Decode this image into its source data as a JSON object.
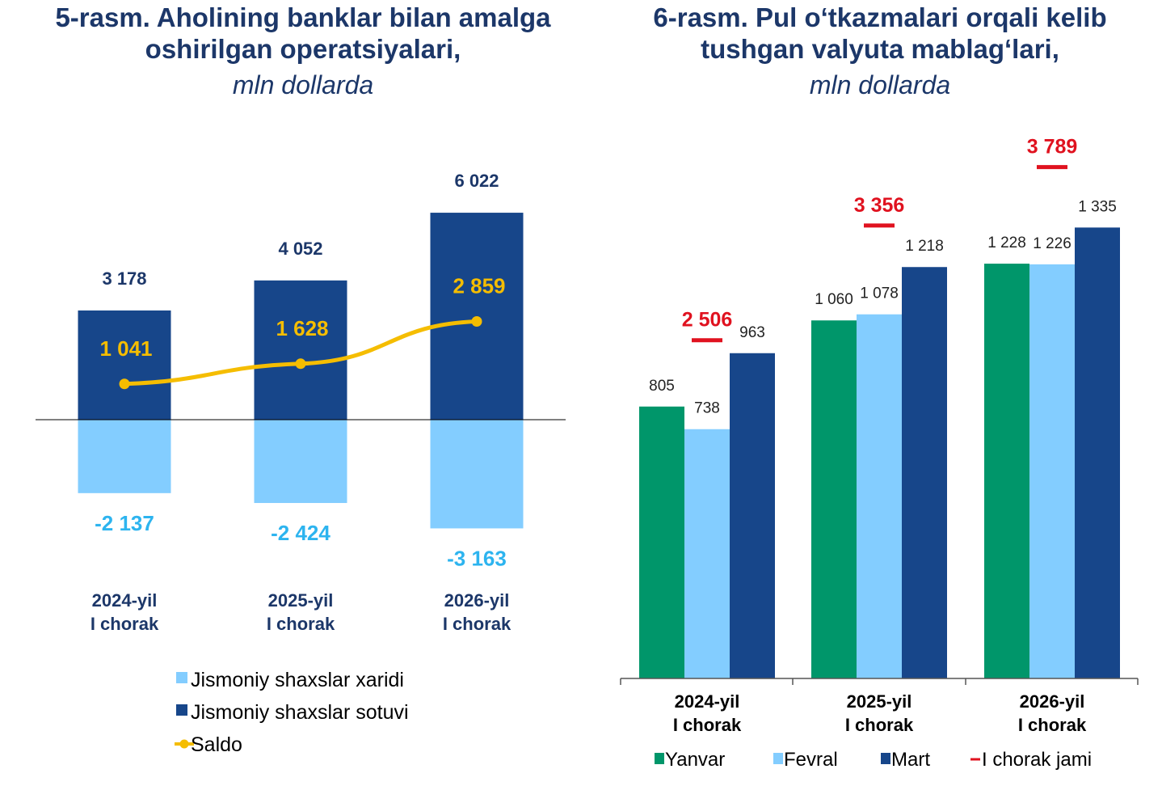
{
  "left_title": {
    "line1": "5-rasm. Aholining banklar bilan amalga",
    "line2": "oshirilgan operatsiyalari,",
    "unit": "mln dollarda"
  },
  "right_title": {
    "line1": "6-rasm. Pul o‘tkazmalari orqali kelib",
    "line2": "tushgan valyuta mablag‘lari,",
    "unit": "mln dollarda"
  },
  "chart_data": [
    {
      "type": "bar",
      "title": "5-rasm. Aholining banklar bilan amalga oshirilgan operatsiyalari, mln dollarda",
      "categories": [
        [
          "2024-yil",
          "I chorak"
        ],
        [
          "2025-yil",
          "I chorak"
        ],
        [
          "2026-yil",
          "I chorak"
        ]
      ],
      "series": [
        {
          "name": "Jismoniy shaxslar xaridi",
          "values": [
            -2137,
            -2424,
            -3163
          ],
          "labels": [
            "-2 137",
            "-2 424",
            "-3 163"
          ],
          "color": "#83cdff",
          "label_color": "#2db4ef"
        },
        {
          "name": "Jismoniy shaxslar sotuvi",
          "values": [
            3178,
            4052,
            6022
          ],
          "labels": [
            "3 178",
            "4 052",
            "6 022"
          ],
          "color": "#17468a",
          "label_color": "#1c3769"
        },
        {
          "name": "Saldo",
          "type": "line",
          "values": [
            1041,
            1628,
            2859
          ],
          "labels": [
            "1 041",
            "1 628",
            "2 859"
          ],
          "color": "#f5bd00"
        }
      ],
      "xlabel": "",
      "ylabel": "",
      "legend_position": "bottom-left"
    },
    {
      "type": "bar",
      "title": "6-rasm. Pul o‘tkazmalari orqali kelib tushgan valyuta mablag‘lari, mln dollarda",
      "categories": [
        [
          "2024-yil",
          "I chorak"
        ],
        [
          "2025-yil",
          "I chorak"
        ],
        [
          "2026-yil",
          "I chorak"
        ]
      ],
      "series": [
        {
          "name": "Yanvar",
          "values": [
            805,
            1060,
            1228
          ],
          "labels": [
            "805",
            "1 060",
            "1 228"
          ],
          "color": "#00966a"
        },
        {
          "name": "Fevral",
          "values": [
            738,
            1078,
            1226
          ],
          "labels": [
            "738",
            "1 078",
            "1 226"
          ],
          "color": "#83cdff"
        },
        {
          "name": "Mart",
          "values": [
            963,
            1218,
            1335
          ],
          "labels": [
            "963",
            "1 218",
            "1 335"
          ],
          "color": "#17468a"
        }
      ],
      "totals": {
        "name": "I chorak jami",
        "values": [
          2506,
          3356,
          3789
        ],
        "labels": [
          "2 506",
          "3 356",
          "3 789"
        ],
        "color": "#e0121f"
      },
      "xlabel": "",
      "ylabel": "",
      "legend_position": "bottom"
    }
  ]
}
